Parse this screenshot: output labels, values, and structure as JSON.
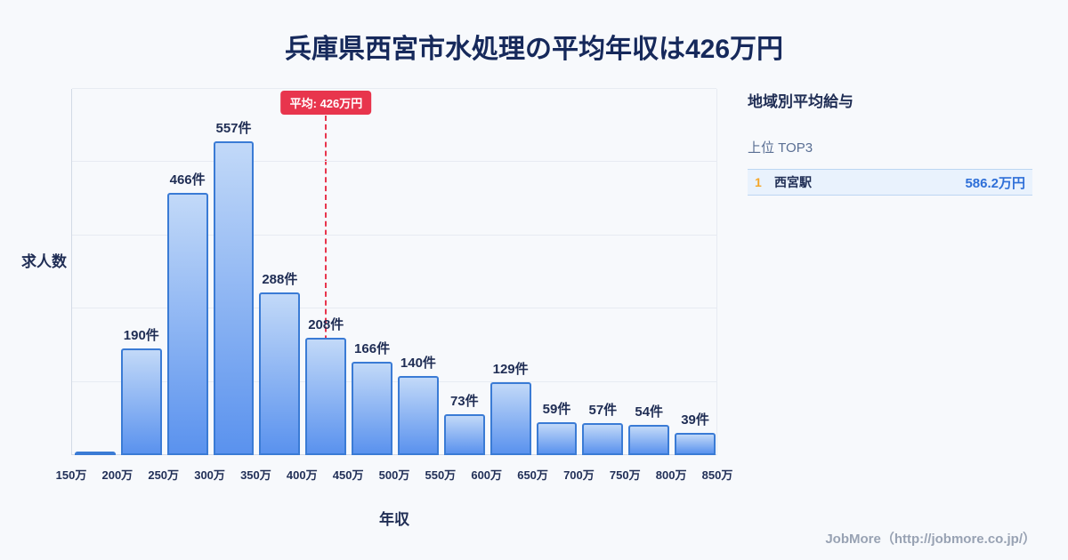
{
  "header": {
    "title": "兵庫県西宮市水処理の平均年収は426万円"
  },
  "chart_data": {
    "type": "bar",
    "title": "兵庫県西宮市水処理の平均年収は426万円",
    "xlabel": "年収",
    "ylabel": "求人数",
    "categories": [
      "150万",
      "200万",
      "250万",
      "300万",
      "350万",
      "400万",
      "450万",
      "500万",
      "550万",
      "600万",
      "650万",
      "700万",
      "750万",
      "800万",
      "850万"
    ],
    "values": [
      6,
      190,
      466,
      557,
      288,
      208,
      166,
      140,
      73,
      129,
      59,
      57,
      54,
      39
    ],
    "bar_labels": [
      "",
      "190件",
      "466件",
      "557件",
      "288件",
      "208件",
      "166件",
      "140件",
      "73件",
      "129件",
      "59件",
      "57件",
      "54件",
      "39件"
    ],
    "xlim": [
      150,
      850
    ],
    "ylim": [
      0,
      650
    ],
    "grid": true,
    "legend": "none",
    "average": {
      "value": 426,
      "label": "平均: 426万円"
    },
    "colors": {
      "bar_top": "#c2d9f8",
      "bar_bottom": "#5a92ee",
      "bar_border": "#3a7bd5",
      "avg_line": "#e8354d",
      "title_text": "#16295b",
      "rank_accent": "#f4a62a",
      "value_text": "#2e6fd8"
    }
  },
  "sidebar": {
    "heading": "地域別平均給与",
    "subheading": "上位 TOP3",
    "rows": [
      {
        "rank": "1",
        "name": "西宮駅",
        "value": "586.2万円"
      }
    ]
  },
  "footer": {
    "credit": "JobMore（http://jobmore.co.jp/）"
  }
}
